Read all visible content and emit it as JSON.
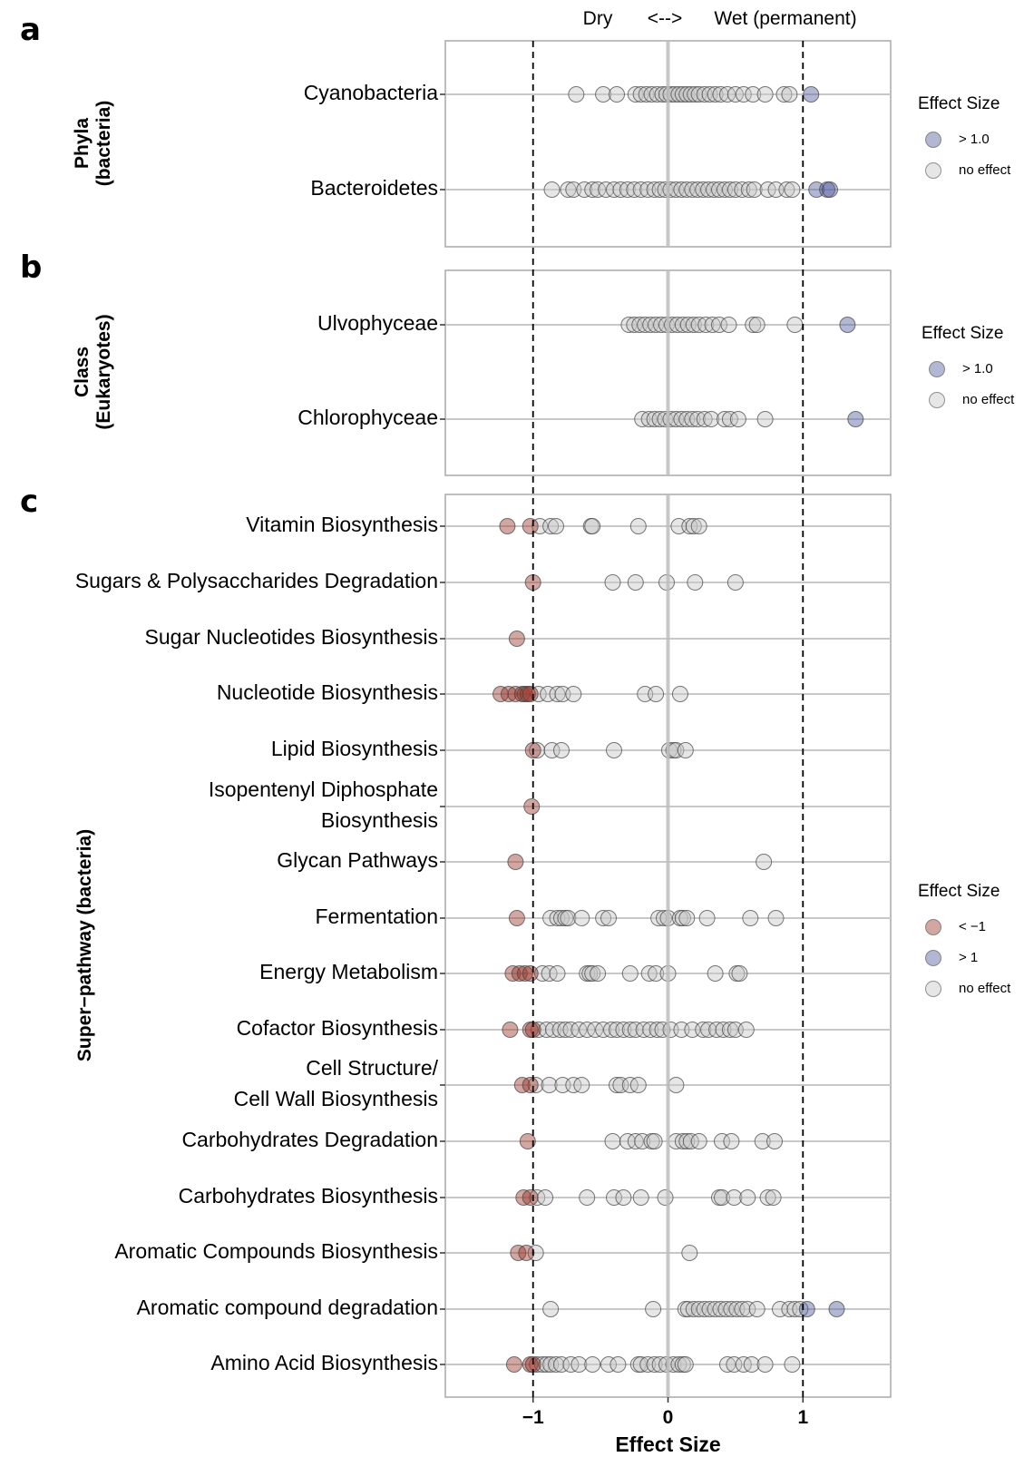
{
  "header": {
    "left": "Dry",
    "arrow": "<-->",
    "right": "Wet (permanent)"
  },
  "colors": {
    "negative": "#9b3a2e",
    "positive": "#55609f",
    "no_effect": "#c8c8c8",
    "outline": "#404040",
    "grid": "#c8c8c8",
    "panel_border": "#a8a8a8",
    "zero_line": "#bdbdbd"
  },
  "legends": [
    {
      "title": "Effect Size",
      "entries": [
        {
          "label": "> 1.0",
          "category": "pos"
        },
        {
          "label": "no effect",
          "category": "none"
        }
      ]
    },
    {
      "title": "Effect Size",
      "entries": [
        {
          "label": "> 1.0",
          "category": "pos"
        },
        {
          "label": "no effect",
          "category": "none"
        }
      ]
    },
    {
      "title": "Effect Size",
      "entries": [
        {
          "label": "< −1",
          "category": "neg"
        },
        {
          "label": "> 1",
          "category": "pos"
        },
        {
          "label": "no effect",
          "category": "none"
        }
      ]
    }
  ],
  "chart_data": {
    "type": "scatter",
    "x_axis": {
      "label": "Effect Size",
      "range": [
        -1.65,
        1.65
      ],
      "ticks": [
        {
          "value": -1,
          "label": "−1"
        },
        {
          "value": 0,
          "label": "0"
        },
        {
          "value": 1,
          "label": "1"
        }
      ],
      "reference_lines_dashed": [
        -1,
        1
      ],
      "reference_line_solid": 0
    },
    "panels": [
      {
        "letter": "a",
        "group_label": [
          "Phyla",
          "(bacteria)"
        ],
        "rows": [
          {
            "label": [
              "Cyanobacteria"
            ],
            "neg": [],
            "pos": [
              1.06
            ],
            "none": [
              -0.68,
              -0.48,
              -0.38,
              -0.24,
              -0.2,
              -0.16,
              -0.12,
              -0.08,
              -0.04,
              -0.01,
              0.02,
              0.05,
              0.08,
              0.11,
              0.14,
              0.17,
              0.2,
              0.23,
              0.27,
              0.31,
              0.35,
              0.39,
              0.44,
              0.5,
              0.56,
              0.63,
              0.72,
              0.86,
              0.9
            ]
          },
          {
            "label": [
              "Bacteroidetes"
            ],
            "neg": [],
            "pos": [
              1.1,
              1.18,
              1.2
            ],
            "none": [
              -0.86,
              -0.74,
              -0.7,
              -0.62,
              -0.56,
              -0.52,
              -0.46,
              -0.4,
              -0.35,
              -0.3,
              -0.25,
              -0.2,
              -0.15,
              -0.1,
              -0.06,
              -0.02,
              0.02,
              0.06,
              0.1,
              0.14,
              0.18,
              0.22,
              0.26,
              0.3,
              0.34,
              0.38,
              0.42,
              0.46,
              0.5,
              0.55,
              0.6,
              0.64,
              0.74,
              0.8,
              0.88,
              0.92
            ]
          }
        ]
      },
      {
        "letter": "b",
        "group_label": [
          "Class",
          "(Eukaryotes)"
        ],
        "rows": [
          {
            "label": [
              "Ulvophyceae"
            ],
            "neg": [],
            "pos": [
              1.33
            ],
            "none": [
              -0.29,
              -0.25,
              -0.21,
              -0.17,
              -0.13,
              -0.09,
              -0.05,
              -0.01,
              0.03,
              0.07,
              0.11,
              0.15,
              0.19,
              0.23,
              0.28,
              0.33,
              0.38,
              0.45,
              0.63,
              0.66,
              0.94
            ]
          },
          {
            "label": [
              "Chlorophyceae"
            ],
            "neg": [],
            "pos": [
              1.39
            ],
            "none": [
              -0.19,
              -0.14,
              -0.1,
              -0.06,
              -0.02,
              0.02,
              0.06,
              0.1,
              0.14,
              0.18,
              0.22,
              0.27,
              0.32,
              0.42,
              0.46,
              0.52,
              0.72
            ]
          }
        ]
      },
      {
        "letter": "c",
        "group_label": [
          "Super−pathway (bacteria)"
        ],
        "rows": [
          {
            "label": [
              "Vitamin Biosynthesis"
            ],
            "neg": [
              -1.19,
              -1.02
            ],
            "pos": [],
            "none": [
              -0.95,
              -0.87,
              -0.83,
              -0.57,
              -0.56,
              -0.22,
              0.08,
              0.16,
              0.19,
              0.23
            ]
          },
          {
            "label": [
              "Sugars & Polysaccharides Degradation"
            ],
            "neg": [
              -1.0
            ],
            "pos": [],
            "none": [
              -0.41,
              -0.24,
              -0.01,
              0.2,
              0.5
            ]
          },
          {
            "label": [
              "Sugar Nucleotides Biosynthesis"
            ],
            "neg": [
              -1.12
            ],
            "pos": [],
            "none": []
          },
          {
            "label": [
              "Nucleotide Biosynthesis"
            ],
            "neg": [
              -1.24,
              -1.18,
              -1.13,
              -1.08,
              -1.06,
              -1.04,
              -1.02
            ],
            "pos": [],
            "none": [
              -0.96,
              -0.89,
              -0.82,
              -0.78,
              -0.7,
              -0.17,
              -0.09,
              0.09
            ]
          },
          {
            "label": [
              "Lipid Biosynthesis"
            ],
            "neg": [
              -1.0
            ],
            "pos": [],
            "none": [
              -0.97,
              -0.86,
              -0.79,
              -0.4,
              0.01,
              0.04,
              0.06,
              0.13
            ]
          },
          {
            "label": [
              "Isopentenyl Diphosphate",
              "Biosynthesis"
            ],
            "neg": [
              -1.01
            ],
            "pos": [],
            "none": []
          },
          {
            "label": [
              "Glycan Pathways"
            ],
            "neg": [
              -1.13
            ],
            "pos": [],
            "none": [
              0.71
            ]
          },
          {
            "label": [
              "Fermentation"
            ],
            "neg": [
              -1.12
            ],
            "pos": [],
            "none": [
              -0.87,
              -0.82,
              -0.79,
              -0.76,
              -0.74,
              -0.64,
              -0.48,
              -0.44,
              -0.07,
              -0.03,
              0.0,
              0.09,
              0.11,
              0.14,
              0.29,
              0.61,
              0.8
            ]
          },
          {
            "label": [
              "Energy Metabolism"
            ],
            "neg": [
              -1.15,
              -1.1,
              -1.06,
              -1.02
            ],
            "pos": [],
            "none": [
              -0.93,
              -0.88,
              -0.82,
              -0.6,
              -0.58,
              -0.56,
              -0.52,
              -0.28,
              -0.14,
              -0.09,
              0.0,
              0.35,
              0.51,
              0.53
            ]
          },
          {
            "label": [
              "Cofactor Biosynthesis"
            ],
            "neg": [
              -1.17,
              -1.02,
              -1.0
            ],
            "pos": [],
            "none": [
              -0.96,
              -0.9,
              -0.85,
              -0.8,
              -0.76,
              -0.72,
              -0.66,
              -0.6,
              -0.54,
              -0.48,
              -0.42,
              -0.38,
              -0.33,
              -0.28,
              -0.24,
              -0.18,
              -0.13,
              -0.08,
              -0.04,
              0.02,
              0.1,
              0.18,
              0.26,
              0.3,
              0.36,
              0.41,
              0.46,
              0.5,
              0.58
            ]
          },
          {
            "label": [
              "Cell Structure/",
              "Cell Wall Biosynthesis"
            ],
            "neg": [
              -1.08,
              -1.02
            ],
            "pos": [],
            "none": [
              -0.98,
              -0.88,
              -0.78,
              -0.7,
              -0.64,
              -0.38,
              -0.35,
              -0.28,
              -0.22,
              0.06
            ]
          },
          {
            "label": [
              "Carbohydrates Degradation"
            ],
            "neg": [
              -1.04
            ],
            "pos": [],
            "none": [
              -0.41,
              -0.3,
              -0.24,
              -0.19,
              -0.12,
              -0.1,
              0.06,
              0.11,
              0.14,
              0.17,
              0.23,
              0.4,
              0.47,
              0.7,
              0.79
            ]
          },
          {
            "label": [
              "Carbohydrates Biosynthesis"
            ],
            "neg": [
              -1.07,
              -1.02
            ],
            "pos": [],
            "none": [
              -0.97,
              -0.91,
              -0.6,
              -0.4,
              -0.33,
              -0.2,
              -0.02,
              0.38,
              0.4,
              0.49,
              0.59,
              0.74,
              0.78
            ]
          },
          {
            "label": [
              "Aromatic Compounds Biosynthesis"
            ],
            "neg": [
              -1.11,
              -1.05
            ],
            "pos": [],
            "none": [
              -0.98,
              0.16
            ]
          },
          {
            "label": [
              "Aromatic compound degradation"
            ],
            "neg": [],
            "pos": [
              1.03,
              1.25
            ],
            "none": [
              -0.87,
              -0.11,
              0.13,
              0.15,
              0.19,
              0.23,
              0.27,
              0.31,
              0.35,
              0.39,
              0.43,
              0.47,
              0.51,
              0.55,
              0.59,
              0.66,
              0.83,
              0.9,
              0.94,
              0.98
            ]
          },
          {
            "label": [
              "Amino Acid Biosynthesis"
            ],
            "neg": [
              -1.14,
              -1.02,
              -1.0
            ],
            "pos": [],
            "none": [
              -0.97,
              -0.93,
              -0.9,
              -0.87,
              -0.83,
              -0.79,
              -0.72,
              -0.66,
              -0.56,
              -0.44,
              -0.37,
              -0.22,
              -0.2,
              -0.15,
              -0.1,
              -0.06,
              -0.01,
              0.04,
              0.08,
              0.11,
              0.13,
              0.44,
              0.49,
              0.56,
              0.62,
              0.72,
              0.92
            ]
          }
        ]
      }
    ]
  }
}
